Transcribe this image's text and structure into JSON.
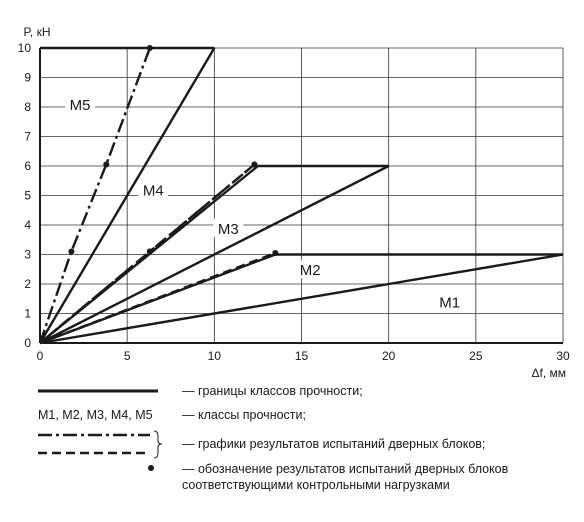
{
  "chart_data": {
    "type": "line",
    "xlabel": "Δf, мм",
    "ylabel": "P, кН",
    "xlim": [
      0,
      30
    ],
    "ylim": [
      0,
      10
    ],
    "x_ticks": [
      0,
      5,
      10,
      15,
      20,
      25,
      30
    ],
    "y_ticks": [
      0,
      1,
      2,
      3,
      4,
      5,
      6,
      7,
      8,
      9,
      10
    ],
    "grid": true,
    "class_boundaries": [
      {
        "name": "M1",
        "x": [
          0,
          30
        ],
        "y": [
          0,
          3
        ]
      },
      {
        "name": "M2",
        "x": [
          0,
          13.5,
          30
        ],
        "y": [
          0,
          3,
          3
        ]
      },
      {
        "name": "M3",
        "x": [
          0,
          20
        ],
        "y": [
          0,
          6
        ]
      },
      {
        "name": "M4",
        "x": [
          0,
          12.5,
          20
        ],
        "y": [
          0,
          6,
          6
        ]
      },
      {
        "name": "M5",
        "x": [
          0,
          10
        ],
        "y": [
          0,
          10
        ]
      },
      {
        "name": "top",
        "x": [
          0,
          10
        ],
        "y": [
          10,
          10
        ]
      }
    ],
    "test_series": [
      {
        "style": "dash-dot",
        "x": [
          0,
          1.8,
          3.8,
          6.3
        ],
        "y": [
          0,
          3.1,
          6.05,
          10
        ]
      },
      {
        "style": "dash-dot",
        "x": [
          0,
          6.3,
          12.3
        ],
        "y": [
          0,
          3.1,
          6.05
        ]
      },
      {
        "style": "dashed",
        "x": [
          0,
          6.3,
          12.3
        ],
        "y": [
          0,
          3.1,
          6.05
        ]
      },
      {
        "style": "dashed",
        "x": [
          0,
          13.5
        ],
        "y": [
          0,
          3.05
        ]
      }
    ],
    "region_labels": [
      {
        "text": "M1",
        "x": 23.5,
        "y": 1.3
      },
      {
        "text": "M2",
        "x": 15.5,
        "y": 2.4
      },
      {
        "text": "M3",
        "x": 10.8,
        "y": 3.8
      },
      {
        "text": "M4",
        "x": 6.5,
        "y": 5.1
      },
      {
        "text": "M5",
        "x": 2.3,
        "y": 8.0
      }
    ]
  },
  "legend": {
    "boundaries": "— границы классов прочности;",
    "classes_symbol": "М1, М2, М3, М4, М5",
    "classes": "— классы прочности;",
    "tests": "— графики результатов испытаний дверных блоков;",
    "points_line1": "— обозначение результатов испытаний дверных блоков",
    "points_line2": "соответствующими контрольными нагрузками"
  }
}
